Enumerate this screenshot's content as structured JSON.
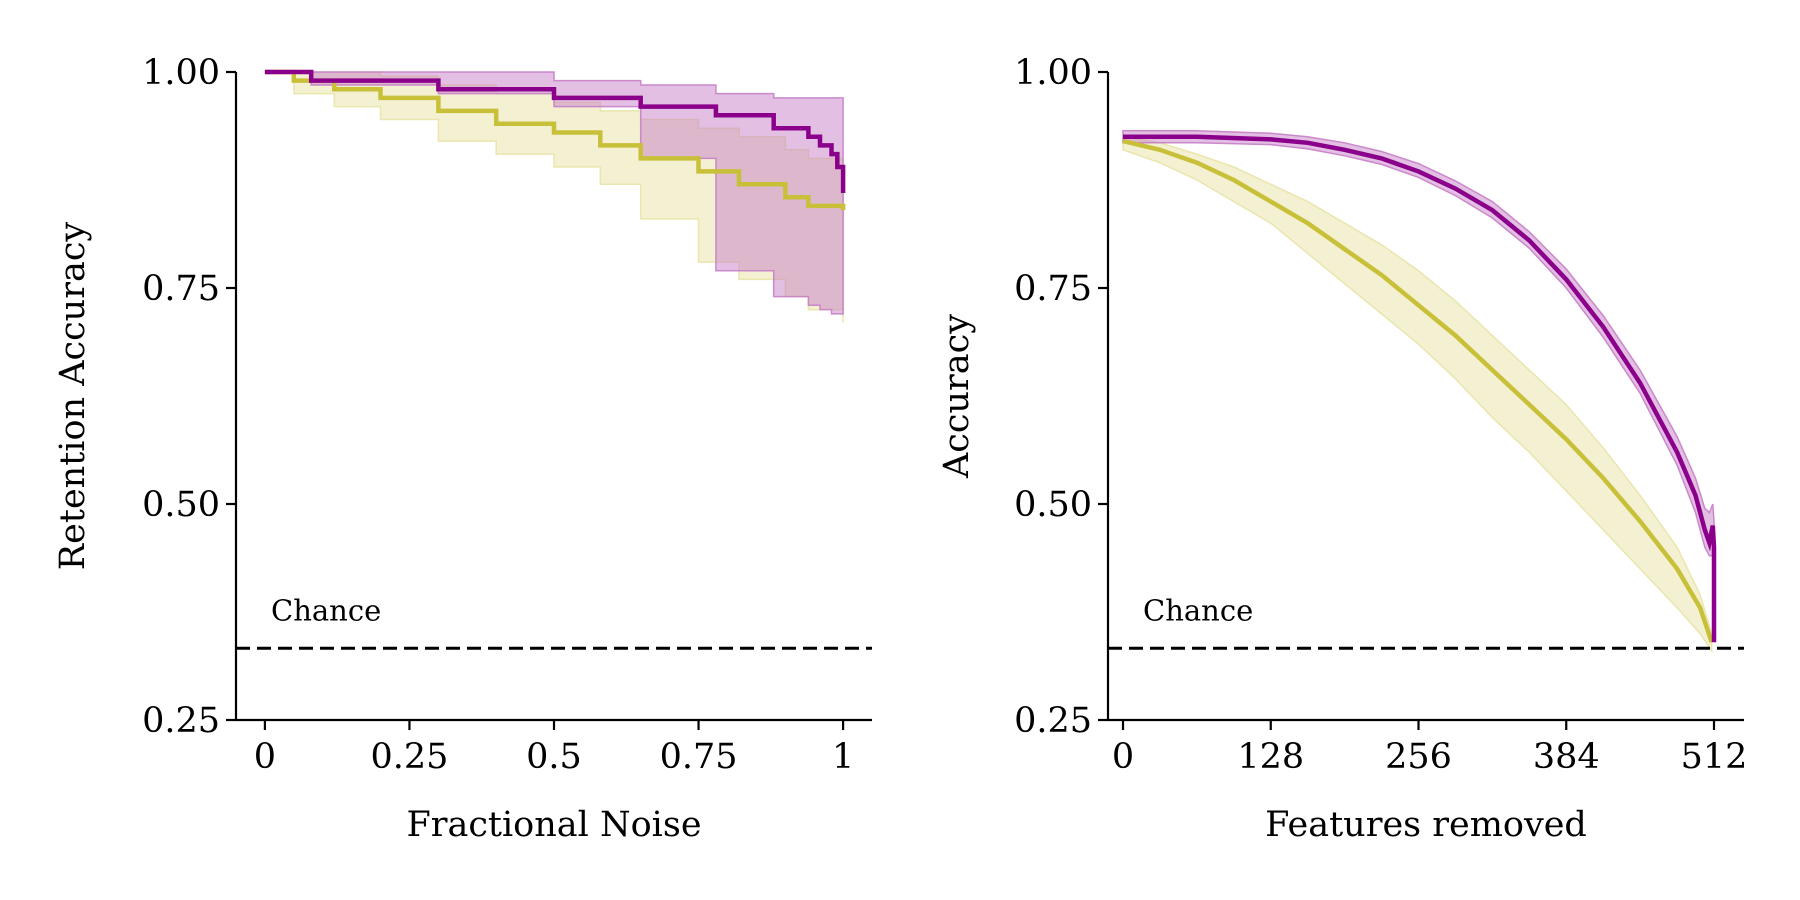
{
  "colors": {
    "purple": "#8b008b",
    "purple_band": "#c77fc7",
    "olive": "#c9c03a",
    "olive_band": "#e8e3a6",
    "chance": "#000000"
  },
  "chart_data": [
    {
      "type": "line",
      "xlabel": "Fractional Noise",
      "ylabel": "Retention Accuracy",
      "xlim": [
        -0.05,
        1.05
      ],
      "ylim": [
        0.25,
        1.0
      ],
      "xticks": [
        0,
        0.25,
        0.5,
        0.75,
        1
      ],
      "xtick_labels": [
        "0",
        "0.25",
        "0.5",
        "0.75",
        "1"
      ],
      "yticks": [
        0.25,
        0.5,
        0.75,
        1.0
      ],
      "ytick_labels": [
        "0.25",
        "0.50",
        "0.75",
        "1.00"
      ],
      "grid": false,
      "chance": {
        "value": 0.333,
        "label": "Chance"
      },
      "series": [
        {
          "color_key": "olive",
          "step": true,
          "x": [
            0.0,
            0.05,
            0.12,
            0.2,
            0.3,
            0.4,
            0.5,
            0.58,
            0.65,
            0.75,
            0.82,
            0.9,
            0.94,
            1.0
          ],
          "y": [
            1.0,
            0.99,
            0.98,
            0.97,
            0.955,
            0.94,
            0.93,
            0.915,
            0.9,
            0.885,
            0.87,
            0.855,
            0.845,
            0.84
          ],
          "lower": [
            1.0,
            0.975,
            0.96,
            0.945,
            0.92,
            0.905,
            0.89,
            0.87,
            0.83,
            0.78,
            0.76,
            0.74,
            0.725,
            0.71
          ],
          "upper": [
            1.0,
            1.0,
            1.0,
            0.995,
            0.985,
            0.975,
            0.965,
            0.955,
            0.945,
            0.935,
            0.925,
            0.91,
            0.9,
            0.895
          ]
        },
        {
          "color_key": "purple",
          "step": true,
          "x": [
            0.0,
            0.08,
            0.3,
            0.5,
            0.65,
            0.78,
            0.88,
            0.94,
            0.96,
            0.98,
            0.99,
            1.0
          ],
          "y": [
            1.0,
            0.99,
            0.98,
            0.97,
            0.96,
            0.95,
            0.935,
            0.925,
            0.915,
            0.905,
            0.89,
            0.86
          ],
          "lower": [
            1.0,
            0.985,
            0.975,
            0.96,
            0.9,
            0.77,
            0.74,
            0.73,
            0.725,
            0.72,
            0.72,
            0.72
          ],
          "upper": [
            1.0,
            1.0,
            1.0,
            0.99,
            0.985,
            0.975,
            0.97,
            0.97,
            0.97,
            0.97,
            0.97,
            0.97
          ]
        }
      ]
    },
    {
      "type": "line",
      "xlabel": "Features removed",
      "ylabel": "Accuracy",
      "xlim": [
        -13,
        538
      ],
      "ylim": [
        0.25,
        1.0
      ],
      "xticks": [
        0,
        128,
        256,
        384,
        512
      ],
      "xtick_labels": [
        "0",
        "128",
        "256",
        "384",
        "512"
      ],
      "yticks": [
        0.25,
        0.5,
        0.75,
        1.0
      ],
      "ytick_labels": [
        "0.25",
        "0.50",
        "0.75",
        "1.00"
      ],
      "grid": false,
      "chance": {
        "value": 0.333,
        "label": "Chance"
      },
      "series": [
        {
          "color_key": "olive",
          "step": false,
          "x": [
            0,
            32,
            64,
            96,
            128,
            160,
            192,
            224,
            256,
            288,
            320,
            352,
            384,
            416,
            448,
            480,
            500,
            510
          ],
          "y": [
            0.92,
            0.91,
            0.895,
            0.875,
            0.85,
            0.825,
            0.795,
            0.765,
            0.73,
            0.695,
            0.655,
            0.615,
            0.575,
            0.53,
            0.48,
            0.425,
            0.38,
            0.34
          ],
          "lower": [
            0.91,
            0.895,
            0.875,
            0.85,
            0.825,
            0.79,
            0.755,
            0.72,
            0.685,
            0.645,
            0.6,
            0.56,
            0.515,
            0.47,
            0.425,
            0.38,
            0.35,
            0.33
          ],
          "upper": [
            0.925,
            0.918,
            0.905,
            0.89,
            0.87,
            0.85,
            0.825,
            0.8,
            0.77,
            0.735,
            0.695,
            0.655,
            0.615,
            0.565,
            0.51,
            0.45,
            0.395,
            0.35
          ]
        },
        {
          "color_key": "purple",
          "step": false,
          "x": [
            0,
            64,
            128,
            160,
            192,
            224,
            256,
            288,
            320,
            352,
            384,
            416,
            448,
            480,
            496,
            504,
            508,
            511,
            512,
            512
          ],
          "y": [
            0.925,
            0.925,
            0.922,
            0.918,
            0.91,
            0.9,
            0.885,
            0.865,
            0.84,
            0.805,
            0.76,
            0.705,
            0.64,
            0.56,
            0.51,
            0.47,
            0.455,
            0.475,
            0.45,
            0.34
          ],
          "lower": [
            0.918,
            0.918,
            0.916,
            0.911,
            0.903,
            0.893,
            0.878,
            0.857,
            0.831,
            0.796,
            0.75,
            0.693,
            0.628,
            0.545,
            0.49,
            0.45,
            0.44,
            0.44,
            0.42,
            0.34
          ],
          "upper": [
            0.932,
            0.932,
            0.929,
            0.925,
            0.918,
            0.908,
            0.894,
            0.874,
            0.85,
            0.815,
            0.772,
            0.718,
            0.655,
            0.578,
            0.53,
            0.495,
            0.49,
            0.5,
            0.48,
            0.36
          ]
        }
      ]
    }
  ]
}
